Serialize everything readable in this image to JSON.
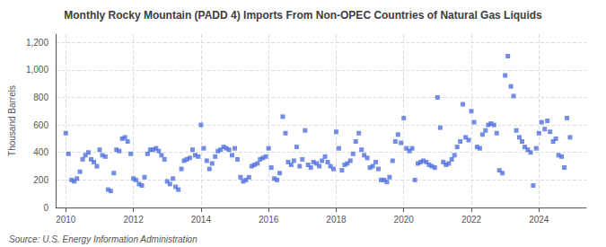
{
  "chart_data": {
    "type": "scatter",
    "title": "Monthly Rocky Mountain (PADD 4) Imports From Non-OPEC Countries of Natural Gas Liquids",
    "ylabel": "Thousand Barrels",
    "annotations": [
      "Source: U.S. Energy Information Administration"
    ],
    "marker": "square",
    "grid": true,
    "xlim": [
      2009.7,
      2025.4
    ],
    "xticks": [
      2010,
      2012,
      2014,
      2016,
      2018,
      2020,
      2022,
      2024
    ],
    "ylim": [
      0,
      1260
    ],
    "yticks": [
      0,
      200,
      400,
      600,
      800,
      {
        "value": 1000,
        "label": "1,000"
      },
      {
        "value": 1200,
        "label": "1,200"
      }
    ],
    "x": [
      2010.0,
      2010.08,
      2010.17,
      2010.25,
      2010.33,
      2010.42,
      2010.5,
      2010.58,
      2010.67,
      2010.75,
      2010.83,
      2010.92,
      2011.0,
      2011.08,
      2011.17,
      2011.25,
      2011.33,
      2011.42,
      2011.5,
      2011.58,
      2011.67,
      2011.75,
      2011.83,
      2011.92,
      2012.0,
      2012.08,
      2012.17,
      2012.25,
      2012.33,
      2012.42,
      2012.5,
      2012.58,
      2012.67,
      2012.75,
      2012.83,
      2012.92,
      2013.0,
      2013.08,
      2013.17,
      2013.25,
      2013.33,
      2013.42,
      2013.5,
      2013.58,
      2013.67,
      2013.75,
      2013.83,
      2013.92,
      2014.0,
      2014.08,
      2014.17,
      2014.25,
      2014.33,
      2014.42,
      2014.5,
      2014.58,
      2014.67,
      2014.75,
      2014.83,
      2014.92,
      2015.0,
      2015.08,
      2015.17,
      2015.25,
      2015.33,
      2015.42,
      2015.5,
      2015.58,
      2015.67,
      2015.75,
      2015.83,
      2015.92,
      2016.0,
      2016.08,
      2016.17,
      2016.25,
      2016.33,
      2016.42,
      2016.5,
      2016.58,
      2016.67,
      2016.75,
      2016.83,
      2016.92,
      2017.0,
      2017.08,
      2017.17,
      2017.25,
      2017.33,
      2017.42,
      2017.5,
      2017.58,
      2017.67,
      2017.75,
      2017.83,
      2017.92,
      2018.0,
      2018.08,
      2018.17,
      2018.25,
      2018.33,
      2018.42,
      2018.5,
      2018.58,
      2018.67,
      2018.75,
      2018.83,
      2018.92,
      2019.0,
      2019.08,
      2019.17,
      2019.25,
      2019.33,
      2019.42,
      2019.5,
      2019.58,
      2019.67,
      2019.75,
      2019.83,
      2019.92,
      2020.0,
      2020.08,
      2020.17,
      2020.25,
      2020.33,
      2020.42,
      2020.5,
      2020.58,
      2020.67,
      2020.75,
      2020.83,
      2020.92,
      2021.0,
      2021.08,
      2021.17,
      2021.25,
      2021.33,
      2021.42,
      2021.5,
      2021.58,
      2021.67,
      2021.75,
      2021.83,
      2021.92,
      2022.0,
      2022.08,
      2022.17,
      2022.25,
      2022.33,
      2022.42,
      2022.5,
      2022.58,
      2022.67,
      2022.75,
      2022.83,
      2022.92,
      2023.0,
      2023.08,
      2023.17,
      2023.25,
      2023.33,
      2023.42,
      2023.5,
      2023.58,
      2023.67,
      2023.75,
      2023.83,
      2023.92,
      2024.0,
      2024.08,
      2024.17,
      2024.25,
      2024.33,
      2024.42,
      2024.5,
      2024.58,
      2024.67,
      2024.75,
      2024.83,
      2024.92
    ],
    "values": [
      540,
      390,
      200,
      190,
      210,
      260,
      350,
      380,
      400,
      350,
      330,
      300,
      420,
      380,
      370,
      130,
      120,
      250,
      420,
      410,
      500,
      510,
      480,
      390,
      210,
      200,
      170,
      160,
      220,
      390,
      420,
      420,
      430,
      410,
      380,
      350,
      190,
      170,
      210,
      150,
      130,
      280,
      340,
      350,
      360,
      420,
      380,
      370,
      600,
      430,
      340,
      280,
      320,
      370,
      410,
      420,
      440,
      430,
      420,
      380,
      430,
      350,
      220,
      190,
      200,
      220,
      300,
      310,
      320,
      350,
      360,
      370,
      430,
      290,
      210,
      200,
      250,
      660,
      540,
      330,
      310,
      340,
      440,
      300,
      350,
      560,
      310,
      290,
      330,
      320,
      300,
      340,
      370,
      330,
      300,
      280,
      550,
      430,
      270,
      310,
      320,
      340,
      390,
      480,
      540,
      420,
      380,
      360,
      290,
      300,
      330,
      280,
      200,
      200,
      185,
      220,
      340,
      480,
      530,
      470,
      650,
      430,
      410,
      430,
      200,
      320,
      330,
      340,
      330,
      310,
      300,
      290,
      800,
      580,
      330,
      310,
      320,
      350,
      380,
      440,
      480,
      750,
      510,
      490,
      700,
      620,
      440,
      430,
      530,
      560,
      600,
      610,
      600,
      540,
      270,
      250,
      960,
      1100,
      880,
      810,
      560,
      510,
      480,
      440,
      420,
      400,
      160,
      430,
      540,
      620,
      570,
      630,
      550,
      480,
      500,
      380,
      370,
      290,
      650,
      510
    ]
  }
}
